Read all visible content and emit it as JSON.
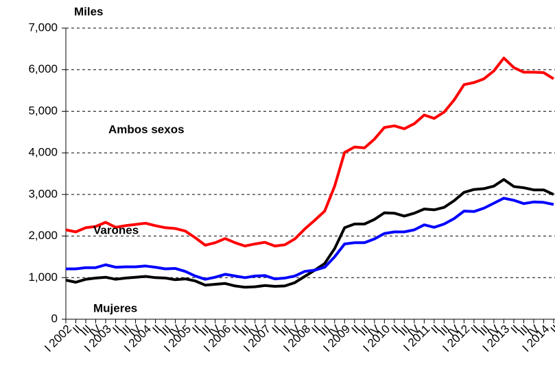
{
  "chart_data": {
    "type": "line",
    "y_label": "Miles",
    "categories": [
      "I 2002",
      "II",
      "III",
      "IV",
      "I 2003",
      "II",
      "III",
      "IV",
      "I 2004",
      "II",
      "III",
      "IV",
      "I 2005",
      "II",
      "III",
      "IV",
      "I 2006",
      "II",
      "III",
      "IV",
      "I 2007",
      "II",
      "III",
      "IV",
      "I 2008",
      "II",
      "III",
      "IV",
      "I 2009",
      "II",
      "III",
      "IV",
      "I 2010",
      "II",
      "III",
      "IV",
      "I 2011",
      "II",
      "III",
      "IV",
      "I 2012",
      "II",
      "III",
      "IV",
      "I 2013",
      "II",
      "III",
      "IV",
      "I 2014",
      "II"
    ],
    "series": [
      {
        "name": "Ambos sexos",
        "color": "#ff0000",
        "values": [
          2150,
          2100,
          2200,
          2230,
          2330,
          2210,
          2250,
          2280,
          2310,
          2250,
          2200,
          2180,
          2120,
          1960,
          1780,
          1840,
          1940,
          1840,
          1760,
          1810,
          1850,
          1760,
          1790,
          1930,
          2170,
          2380,
          2600,
          3200,
          4010,
          4140,
          4120,
          4330,
          4610,
          4650,
          4580,
          4700,
          4910,
          4830,
          4980,
          5270,
          5640,
          5690,
          5780,
          5970,
          6280,
          6050,
          5940,
          5940,
          5930,
          5780
        ]
      },
      {
        "name": "Varones",
        "color": "#000000",
        "values": [
          940,
          890,
          960,
          990,
          1010,
          960,
          990,
          1010,
          1030,
          1000,
          990,
          950,
          970,
          920,
          820,
          840,
          860,
          800,
          770,
          780,
          810,
          790,
          800,
          880,
          1030,
          1180,
          1340,
          1700,
          2200,
          2290,
          2290,
          2400,
          2560,
          2550,
          2480,
          2550,
          2650,
          2630,
          2690,
          2850,
          3050,
          3120,
          3140,
          3200,
          3360,
          3190,
          3160,
          3110,
          3110,
          3000
        ]
      },
      {
        "name": "Mujeres",
        "color": "#0000ff",
        "values": [
          1210,
          1210,
          1240,
          1240,
          1310,
          1250,
          1260,
          1260,
          1280,
          1250,
          1210,
          1220,
          1150,
          1040,
          960,
          1010,
          1080,
          1040,
          1000,
          1040,
          1050,
          970,
          990,
          1040,
          1150,
          1180,
          1250,
          1500,
          1810,
          1840,
          1840,
          1930,
          2060,
          2100,
          2100,
          2150,
          2270,
          2210,
          2290,
          2420,
          2600,
          2590,
          2670,
          2790,
          2910,
          2860,
          2780,
          2820,
          2810,
          2760
        ]
      }
    ],
    "ylim": [
      0,
      7000
    ],
    "yticks": [
      0,
      {
        "value": 1000,
        "label": "1,000"
      },
      {
        "value": 2000,
        "label": "2,000"
      },
      {
        "value": 3000,
        "label": "3,000"
      },
      {
        "value": 4000,
        "label": "4,000"
      },
      {
        "value": 5000,
        "label": "5,000"
      },
      {
        "value": 6000,
        "label": "6,000"
      },
      {
        "value": 7000,
        "label": "7,000"
      }
    ],
    "grid": true
  }
}
